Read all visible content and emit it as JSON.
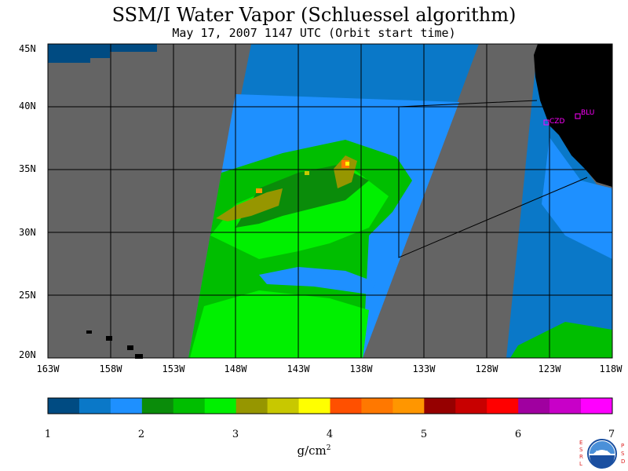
{
  "title": "SSM/I Water Vapor (Schluessel algorithm)",
  "subtitle": "May 17, 2007  1147 UTC  (Orbit start time)",
  "lat_labels": [
    "45N",
    "40N",
    "35N",
    "30N",
    "25N",
    "20N"
  ],
  "lon_labels": [
    "163W",
    "158W",
    "153W",
    "148W",
    "143W",
    "138W",
    "133W",
    "128W",
    "123W",
    "118W"
  ],
  "sites": [
    {
      "label": "CZD"
    },
    {
      "label": "BLU"
    }
  ],
  "colorbar": {
    "ticks": [
      "1",
      "2",
      "3",
      "4",
      "5",
      "6",
      "7"
    ],
    "units_base": "g/cm",
    "units_sup": "2",
    "colors": [
      "#004b82",
      "#0a78c8",
      "#1e90ff",
      "#0a8c0a",
      "#00be00",
      "#00f000",
      "#969600",
      "#c8c800",
      "#ffff00",
      "#ff5000",
      "#ff7800",
      "#ff9600",
      "#960000",
      "#c80000",
      "#ff0000",
      "#a000a0",
      "#c800c8",
      "#ff00ff"
    ]
  },
  "logo": {
    "letters_left": "ESRL",
    "letters_right": "PSD",
    "text": "NOAA"
  },
  "map_colors": {
    "nodata": "#646464",
    "land": "#000000",
    "grid": "#000000"
  }
}
